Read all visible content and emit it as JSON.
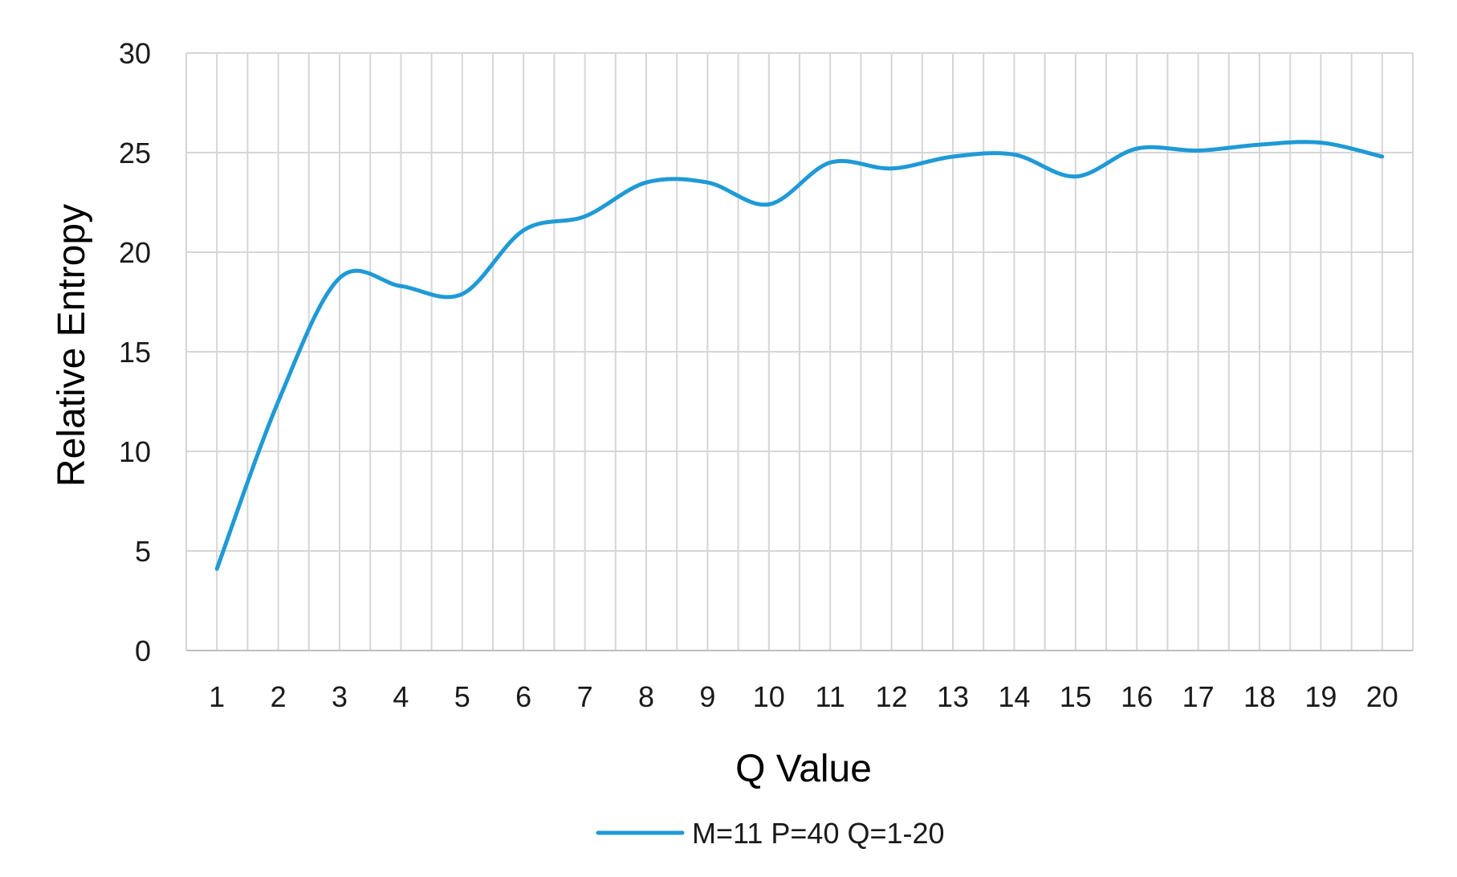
{
  "chart_data": {
    "type": "line",
    "title": "",
    "xlabel": "Q Value",
    "ylabel": "Relative Entropy",
    "x": [
      1,
      2,
      3,
      4,
      5,
      6,
      7,
      8,
      9,
      10,
      11,
      12,
      13,
      14,
      15,
      16,
      17,
      18,
      19,
      20
    ],
    "series": [
      {
        "name": "M=11 P=40 Q=1-20",
        "color": "#1f9ad6",
        "values": [
          4.1,
          12.5,
          18.7,
          18.3,
          17.9,
          21.1,
          21.8,
          23.5,
          23.5,
          22.4,
          24.5,
          24.2,
          24.8,
          24.9,
          23.8,
          25.2,
          25.1,
          25.4,
          25.5,
          24.8
        ]
      }
    ],
    "xlim": [
      0.5,
      20.5
    ],
    "ylim": [
      0,
      30
    ],
    "y_ticks": [
      0,
      5,
      10,
      15,
      20,
      25,
      30
    ],
    "x_tick_labels": [
      "1",
      "2",
      "3",
      "4",
      "5",
      "6",
      "7",
      "8",
      "9",
      "10",
      "11",
      "12",
      "13",
      "14",
      "15",
      "16",
      "17",
      "18",
      "19",
      "20"
    ],
    "grid": true,
    "legend": "bottom-center"
  }
}
